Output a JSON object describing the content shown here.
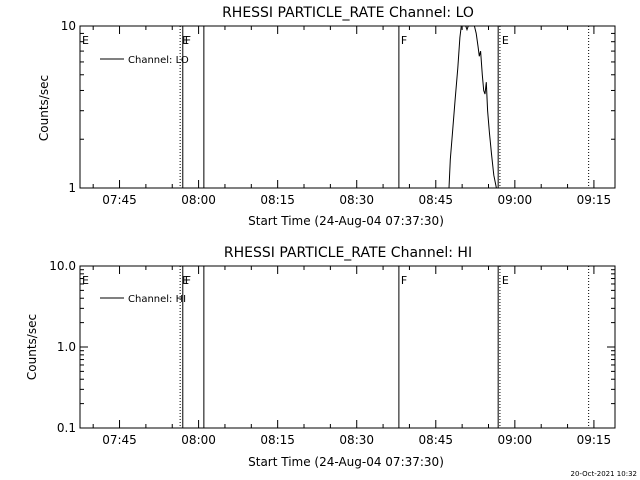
{
  "footer": {
    "timestamp": "20-Oct-2021 10:32"
  },
  "chart_data": [
    {
      "type": "line",
      "title": "RHESSI PARTICLE_RATE Channel: LO",
      "xlabel": "Start Time (24-Aug-04 07:37:30)",
      "ylabel": "Counts/sec",
      "yscale": "log",
      "ylim": [
        1,
        10
      ],
      "yticks": [
        {
          "v": 1,
          "label": "1"
        },
        {
          "v": 10,
          "label": "10"
        }
      ],
      "xlim": [
        "07:37:30",
        "09:19:00"
      ],
      "xticks": [
        "07:45",
        "08:00",
        "08:15",
        "08:30",
        "08:45",
        "09:00",
        "09:15"
      ],
      "grid": false,
      "legend": {
        "position": "top-left",
        "label": "Channel: LO"
      },
      "markers": [
        {
          "time": "07:56:30",
          "label": "E",
          "style": "dotted"
        },
        {
          "time": "07:57:00",
          "label": "F",
          "style": "solid"
        },
        {
          "time": "08:01:00",
          "label": "",
          "style": "solid"
        },
        {
          "time": "08:38:00",
          "label": "F",
          "style": "solid"
        },
        {
          "time": "08:56:50",
          "label": "",
          "style": "solid"
        },
        {
          "time": "08:57:10",
          "label": "E",
          "style": "dotted"
        },
        {
          "time": "09:14:00",
          "label": "",
          "style": "dotted"
        }
      ],
      "start_marker_label": "E",
      "series": [
        {
          "name": "Channel: LO",
          "points": [
            [
              "08:47:30",
              1
            ],
            [
              "08:47:45",
              1.5
            ],
            [
              "08:48:10",
              2.2
            ],
            [
              "08:48:40",
              3.5
            ],
            [
              "08:49:10",
              5.5
            ],
            [
              "08:49:35",
              8.5
            ],
            [
              "08:49:50",
              10
            ],
            [
              "08:50:40",
              10
            ],
            [
              "08:50:55",
              9.5
            ],
            [
              "08:51:10",
              10
            ],
            [
              "08:52:20",
              10
            ],
            [
              "08:52:40",
              9.0
            ],
            [
              "08:53:00",
              7.5
            ],
            [
              "08:53:15",
              6.5
            ],
            [
              "08:53:30",
              7.0
            ],
            [
              "08:53:50",
              5.0
            ],
            [
              "08:54:05",
              4.0
            ],
            [
              "08:54:20",
              3.8
            ],
            [
              "08:54:35",
              4.5
            ],
            [
              "08:54:50",
              3.0
            ],
            [
              "08:55:10",
              2.2
            ],
            [
              "08:55:35",
              1.6
            ],
            [
              "08:56:00",
              1.2
            ],
            [
              "08:56:30",
              1
            ]
          ]
        }
      ]
    },
    {
      "type": "line",
      "title": "RHESSI PARTICLE_RATE Channel: HI",
      "xlabel": "Start Time (24-Aug-04 07:37:30)",
      "ylabel": "Counts/sec",
      "yscale": "log",
      "ylim": [
        0.1,
        10
      ],
      "yticks": [
        {
          "v": 0.1,
          "label": "0.1"
        },
        {
          "v": 1,
          "label": "1.0"
        },
        {
          "v": 10,
          "label": "10.0"
        }
      ],
      "xlim": [
        "07:37:30",
        "09:19:00"
      ],
      "xticks": [
        "07:45",
        "08:00",
        "08:15",
        "08:30",
        "08:45",
        "09:00",
        "09:15"
      ],
      "grid": false,
      "legend": {
        "position": "top-left",
        "label": "Channel: HI"
      },
      "markers": [
        {
          "time": "07:56:30",
          "label": "E",
          "style": "dotted"
        },
        {
          "time": "07:57:00",
          "label": "F",
          "style": "solid"
        },
        {
          "time": "08:01:00",
          "label": "",
          "style": "solid"
        },
        {
          "time": "08:38:00",
          "label": "F",
          "style": "solid"
        },
        {
          "time": "08:56:50",
          "label": "",
          "style": "solid"
        },
        {
          "time": "08:57:10",
          "label": "E",
          "style": "dotted"
        },
        {
          "time": "09:14:00",
          "label": "",
          "style": "dotted"
        }
      ],
      "start_marker_label": "E",
      "series": [
        {
          "name": "Channel: HI",
          "points": []
        }
      ]
    }
  ]
}
